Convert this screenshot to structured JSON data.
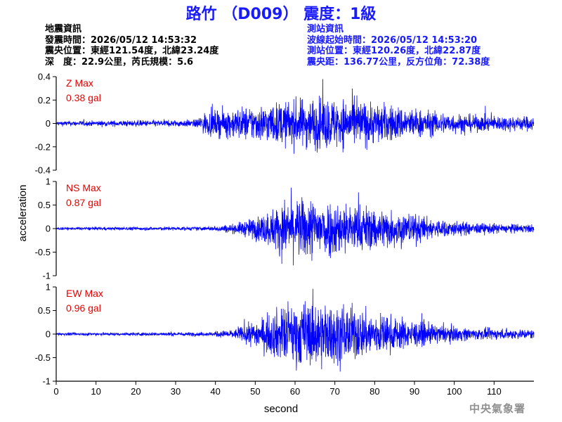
{
  "title": "路竹 （D009） 震度：1級",
  "quake_info": {
    "heading": "地震資訊",
    "origin_time": "發震時間：2026/05/12 14:53:32",
    "epicenter": "震央位置：東經121.54度，北緯23.24度",
    "depth_magnitude": "深　度：22.9公里，芮氏規模：5.6"
  },
  "station_info": {
    "heading": "測站資訊",
    "wave_start": "波線起始時間：2026/05/12 14:53:20",
    "station_location": "測站位置：東經120.26度，北緯22.87度",
    "epicentral_distance": "震央距：136.77公里，反方位角：72.38度"
  },
  "credit": "中央氣象署",
  "colors": {
    "trace": "#0000ff",
    "label": "#e60000",
    "title": "#1a1aff"
  },
  "chart_data": [
    {
      "type": "line",
      "series": [
        {
          "name": "Z",
          "values": []
        }
      ],
      "annotation_label": "Z Max",
      "annotation_value": "0.38 gal",
      "peak": 0.38,
      "xlim": [
        0,
        120
      ],
      "ylim": [
        -0.4,
        0.4
      ],
      "yticks": [
        -0.4,
        -0.2,
        0,
        0.2,
        0.4
      ],
      "ytick_labels": [
        "-0.4",
        "-0.2",
        "0",
        "0.2",
        "0.4"
      ],
      "envelope": [
        [
          0,
          0.02
        ],
        [
          35,
          0.03
        ],
        [
          37,
          0.09
        ],
        [
          45,
          0.13
        ],
        [
          55,
          0.17
        ],
        [
          65,
          0.22
        ],
        [
          75,
          0.2
        ],
        [
          85,
          0.15
        ],
        [
          95,
          0.1
        ],
        [
          105,
          0.07
        ],
        [
          120,
          0.06
        ]
      ]
    },
    {
      "type": "line",
      "series": [
        {
          "name": "NS",
          "values": []
        }
      ],
      "annotation_label": "NS Max",
      "annotation_value": "0.87 gal",
      "peak": 0.87,
      "xlim": [
        0,
        120
      ],
      "ylim": [
        -1,
        1
      ],
      "yticks": [
        -1,
        -0.5,
        0,
        0.5,
        1
      ],
      "ytick_labels": [
        "-1",
        "-0.5",
        "0",
        "0.5",
        "1"
      ],
      "envelope": [
        [
          0,
          0.03
        ],
        [
          38,
          0.04
        ],
        [
          45,
          0.1
        ],
        [
          52,
          0.3
        ],
        [
          58,
          0.6
        ],
        [
          65,
          0.65
        ],
        [
          72,
          0.55
        ],
        [
          80,
          0.45
        ],
        [
          88,
          0.35
        ],
        [
          95,
          0.2
        ],
        [
          105,
          0.12
        ],
        [
          120,
          0.08
        ]
      ]
    },
    {
      "type": "line",
      "series": [
        {
          "name": "EW",
          "values": []
        }
      ],
      "annotation_label": "EW Max",
      "annotation_value": "0.96 gal",
      "peak": 0.96,
      "xlim": [
        0,
        120
      ],
      "ylim": [
        -1,
        1
      ],
      "yticks": [
        -1,
        -0.5,
        0,
        0.5,
        1
      ],
      "ytick_labels": [
        "-1",
        "-0.5",
        "0",
        "0.5",
        "1"
      ],
      "envelope": [
        [
          0,
          0.03
        ],
        [
          38,
          0.04
        ],
        [
          45,
          0.1
        ],
        [
          52,
          0.35
        ],
        [
          58,
          0.65
        ],
        [
          65,
          0.7
        ],
        [
          72,
          0.6
        ],
        [
          80,
          0.45
        ],
        [
          88,
          0.3
        ],
        [
          95,
          0.2
        ],
        [
          105,
          0.12
        ],
        [
          120,
          0.1
        ]
      ]
    }
  ],
  "x_axis": {
    "label": "second",
    "ticks": [
      0,
      10,
      20,
      30,
      40,
      50,
      60,
      70,
      80,
      90,
      100,
      110
    ],
    "tick_labels": [
      "0",
      "10",
      "20",
      "30",
      "40",
      "50",
      "60",
      "70",
      "80",
      "90",
      "100",
      "110"
    ]
  },
  "y_axis": {
    "label": "acceleration"
  }
}
